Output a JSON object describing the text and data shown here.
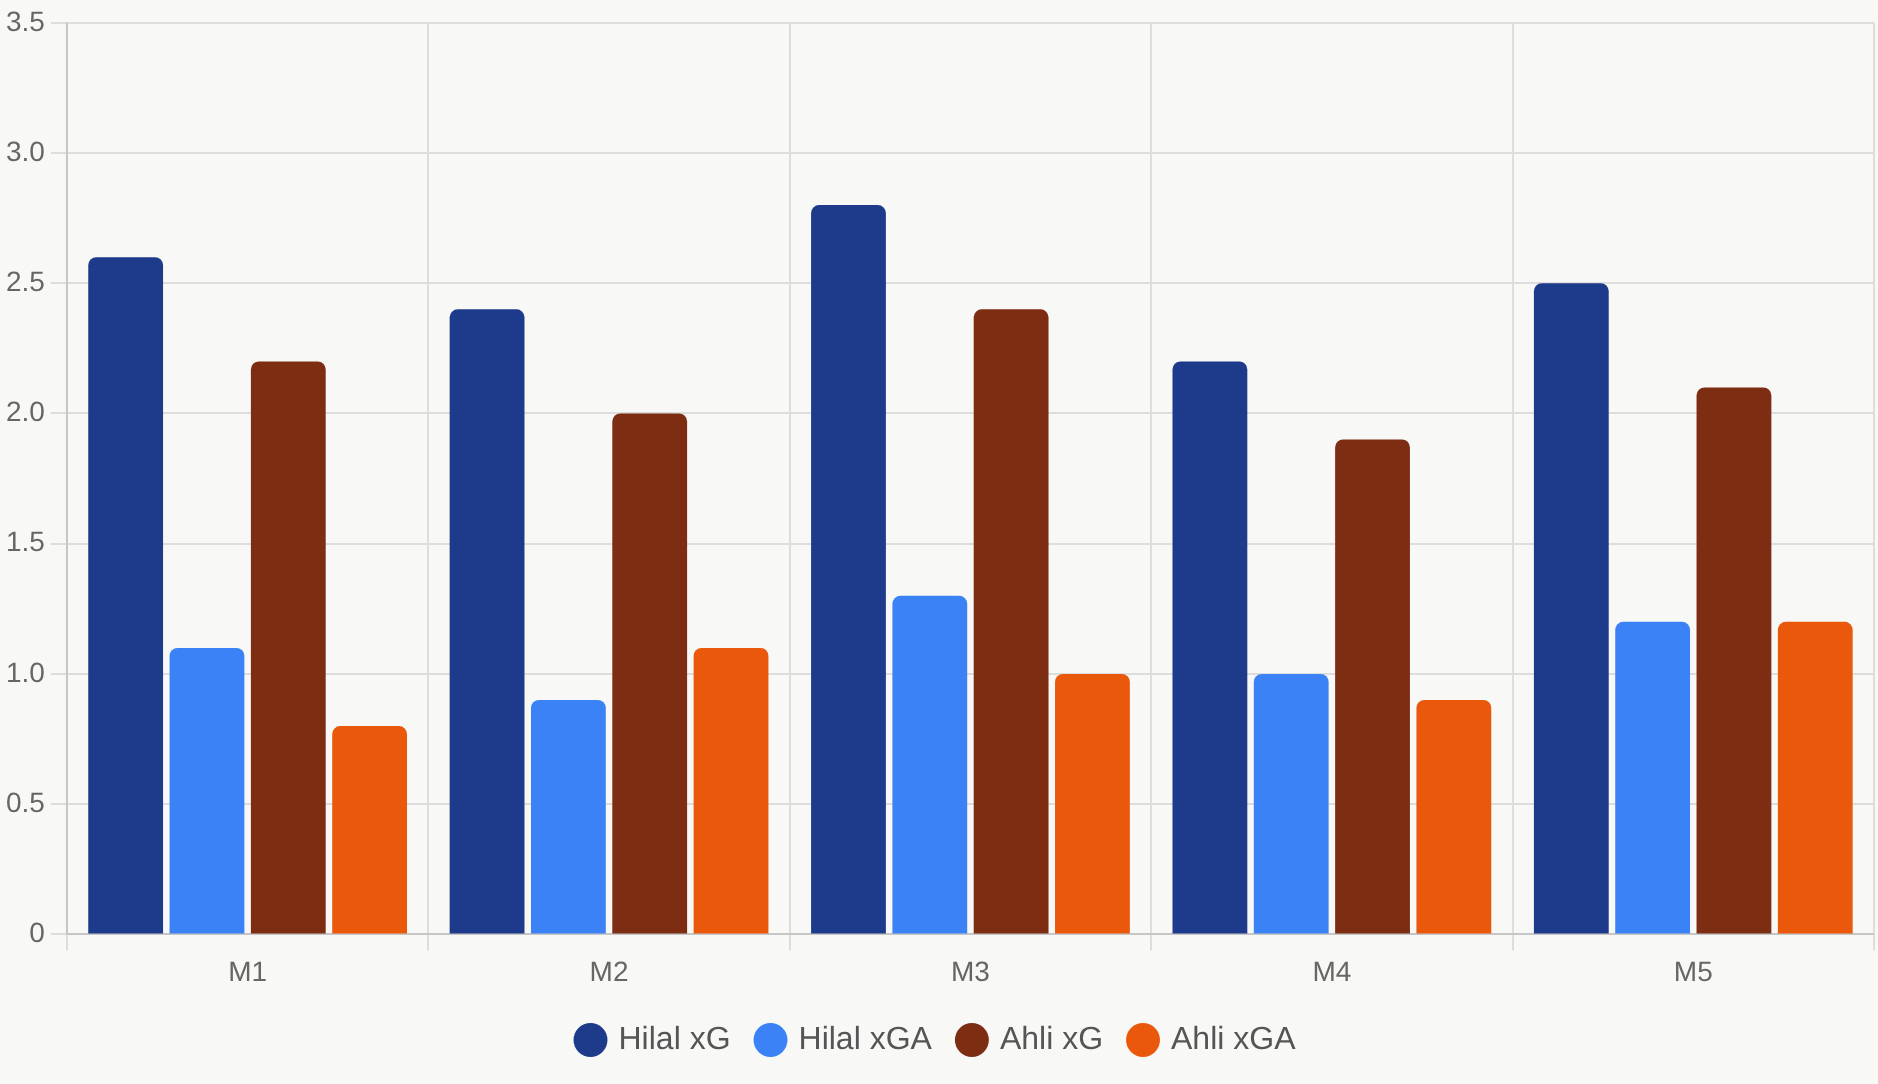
{
  "chart_data": {
    "type": "bar",
    "categories": [
      "M1",
      "M2",
      "M3",
      "M4",
      "M5"
    ],
    "series": [
      {
        "name": "Hilal xG",
        "color": "#1e3a8a",
        "values": [
          2.6,
          2.4,
          2.8,
          2.2,
          2.5
        ]
      },
      {
        "name": "Hilal xGA",
        "color": "#3b82f6",
        "values": [
          1.1,
          0.9,
          1.3,
          1.0,
          1.2
        ]
      },
      {
        "name": "Ahli xG",
        "color": "#7c2d12",
        "values": [
          2.2,
          2.0,
          2.4,
          1.9,
          2.1
        ]
      },
      {
        "name": "Ahli xGA",
        "color": "#ea580c",
        "values": [
          0.8,
          1.1,
          1.0,
          0.9,
          1.2
        ]
      }
    ],
    "ylim": [
      0,
      3.5
    ],
    "yticks": [
      0,
      0.5,
      {
        "value": 1,
        "label": "1.0"
      },
      1.5,
      {
        "value": 2,
        "label": "2.0"
      },
      2.5,
      {
        "value": 3,
        "label": "3.0"
      },
      3.5
    ],
    "grid": true,
    "legend": "bottom"
  }
}
